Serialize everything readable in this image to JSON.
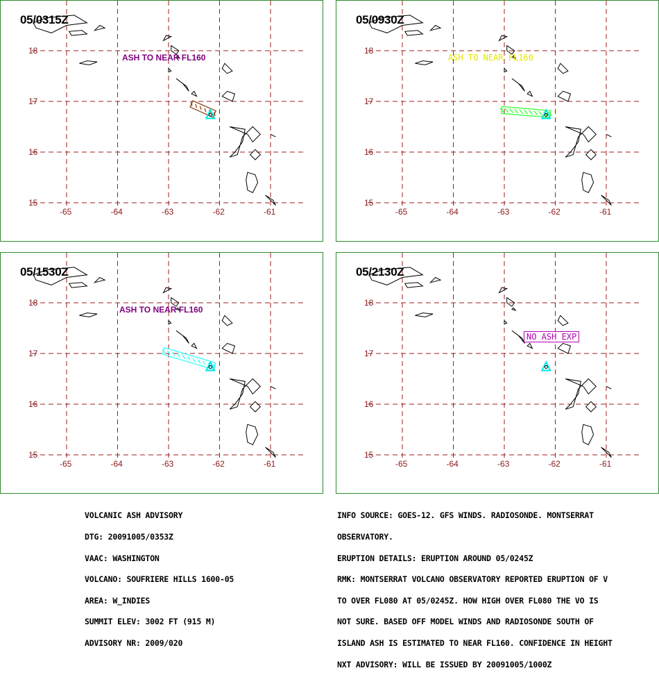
{
  "map_axes": {
    "lat_labels": [
      "18",
      "17",
      "16",
      "15"
    ],
    "lon_labels": [
      "-65",
      "-64",
      "-63",
      "-62",
      "-61"
    ]
  },
  "panels": [
    {
      "title": "05/0315Z",
      "ash_label": "ASH TO NEAR FL160",
      "ash_color": "#800080",
      "plume_color": "#8b4513",
      "plume": [
        [
          -62.55,
          16.95
        ],
        [
          -62.1,
          16.75
        ]
      ],
      "volcano": [
        -62.18,
        16.72
      ]
    },
    {
      "title": "05/0930Z",
      "ash_label": "ASH TO NEAR FL160",
      "ash_color": "#ffff00",
      "plume_color": "#33ff33",
      "plume": [
        [
          -63.05,
          16.83
        ],
        [
          -62.1,
          16.75
        ]
      ],
      "volcano": [
        -62.18,
        16.72
      ]
    },
    {
      "title": "05/1530Z",
      "ash_label": "ASH TO NEAR FL160",
      "ash_color": "#800080",
      "plume_color": "#33ffff",
      "plume": [
        [
          -63.1,
          17.05
        ],
        [
          -62.1,
          16.75
        ]
      ],
      "volcano": [
        -62.18,
        16.72
      ]
    },
    {
      "title": "05/2130Z",
      "ash_label": "NO ASH EXP",
      "ash_color": "#b400b4",
      "plume_color": "",
      "plume": [],
      "volcano": [
        -62.18,
        16.72
      ]
    }
  ],
  "advisory": {
    "lines": [
      "VOLCANIC ASH ADVISORY",
      "DTG: 20091005/0353Z",
      "VAAC: WASHINGTON",
      "VOLCANO: SOUFRIERE HILLS 1600-05",
      "AREA: W_INDIES",
      "SUMMIT ELEV: 3002 FT (915 M)",
      "ADVISORY NR: 2009/020"
    ]
  },
  "info": {
    "lines": [
      "INFO SOURCE: GOES-12. GFS WINDS. RADIOSONDE. MONTSERRAT",
      "OBSERVATORY.",
      "ERUPTION DETAILS: ERUPTION AROUND 05/0245Z",
      "RMK: MONTSERRAT VOLCANO OBSERVATORY REPORTED ERUPTION OF V",
      "TO OVER FL080 AT 05/0245Z. HOW HIGH OVER FL080 THE VO IS",
      "NOT SURE. BASED OFF MODEL WINDS AND RADIOSONDE SOUTH OF",
      "ISLAND ASH IS ESTIMATED TO NEAR FL160. CONFIDENCE IN HEIGHT",
      "NXT ADVISORY: WILL BE ISSUED BY 20091005/1000Z"
    ]
  }
}
